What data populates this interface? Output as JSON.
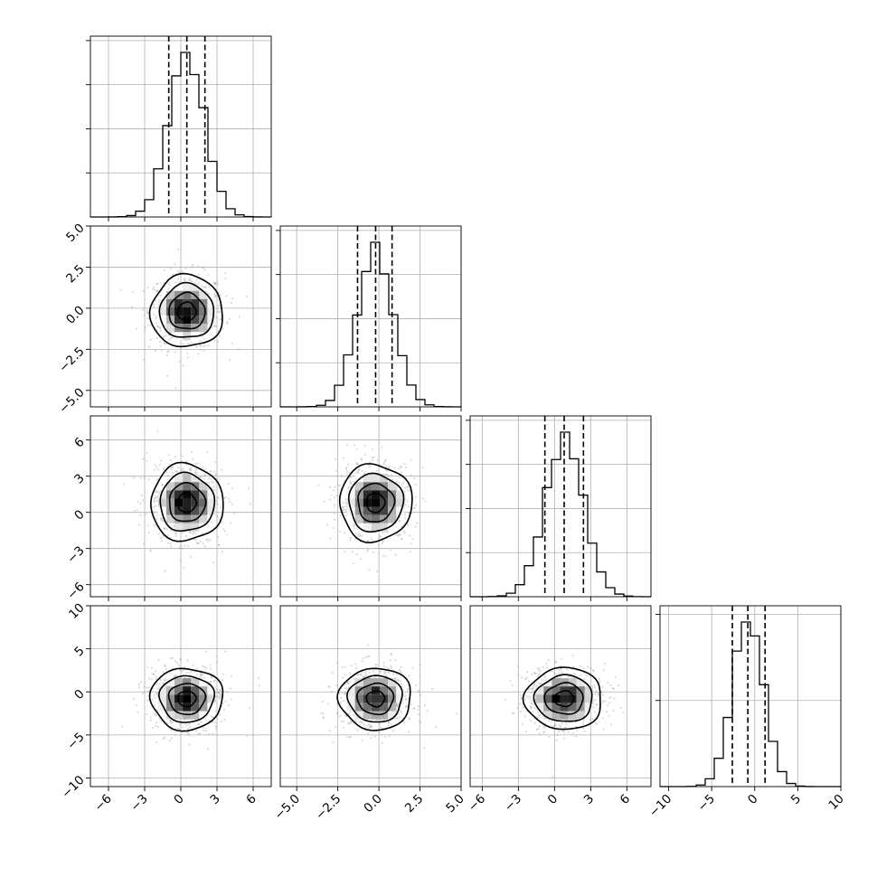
{
  "chart_data": {
    "type": "corner",
    "grid": true,
    "variables": [
      {
        "index": 0,
        "range": [
          -7.5,
          7.5
        ],
        "ticks": [
          -6,
          -3,
          0,
          3,
          6
        ],
        "tick_labels": [
          "−6",
          "−3",
          "0",
          "3",
          "6"
        ],
        "mean": 0.5,
        "sigma": 1.5,
        "quantiles": [
          -1.0,
          0.5,
          2.0
        ]
      },
      {
        "index": 1,
        "range": [
          -6.0,
          5.0
        ],
        "ticks": [
          -5.0,
          -2.5,
          0.0,
          2.5,
          5.0
        ],
        "tick_labels": [
          "−5.0",
          "−2.5",
          "0.0",
          "2.5",
          "5.0"
        ],
        "mean": -0.2,
        "sigma": 1.1,
        "quantiles": [
          -1.3,
          -0.2,
          0.8
        ]
      },
      {
        "index": 2,
        "range": [
          -7.0,
          8.0
        ],
        "ticks": [
          -6,
          -3,
          0,
          3,
          6
        ],
        "tick_labels": [
          "−6",
          "−3",
          "0",
          "3",
          "6"
        ],
        "mean": 0.8,
        "sigma": 1.6,
        "quantiles": [
          -0.8,
          0.8,
          2.4
        ]
      },
      {
        "index": 3,
        "range": [
          -11.0,
          10.0
        ],
        "ticks": [
          -10,
          -5,
          0,
          5,
          10
        ],
        "tick_labels": [
          "−10",
          "−5",
          "0",
          "5",
          "10"
        ],
        "mean": -0.8,
        "sigma": 1.8,
        "quantiles": [
          -2.6,
          -0.8,
          1.2
        ]
      }
    ],
    "histograms": [
      {
        "variable": 0,
        "bins": 20,
        "quantile_style": "dashed",
        "ytick_count": 4
      },
      {
        "variable": 1,
        "bins": 20,
        "quantile_style": "dashed",
        "ytick_count": 4
      },
      {
        "variable": 2,
        "bins": 20,
        "quantile_style": "dashed",
        "ytick_count": 4
      },
      {
        "variable": 3,
        "bins": 20,
        "quantile_style": "dashed",
        "ytick_count": 2
      }
    ],
    "panels_2d": [
      {
        "x": 0,
        "y": 1,
        "contour_levels": [
          "0.5σ",
          "1σ",
          "1.5σ",
          "2σ"
        ]
      },
      {
        "x": 0,
        "y": 2,
        "contour_levels": [
          "0.5σ",
          "1σ",
          "1.5σ",
          "2σ"
        ]
      },
      {
        "x": 1,
        "y": 2,
        "contour_levels": [
          "0.5σ",
          "1σ",
          "1.5σ",
          "2σ"
        ]
      },
      {
        "x": 0,
        "y": 3,
        "contour_levels": [
          "0.5σ",
          "1σ",
          "1.5σ",
          "2σ"
        ]
      },
      {
        "x": 1,
        "y": 3,
        "contour_levels": [
          "0.5σ",
          "1σ",
          "1.5σ",
          "2σ"
        ]
      },
      {
        "x": 2,
        "y": 3,
        "contour_levels": [
          "0.5σ",
          "1σ",
          "1.5σ",
          "2σ"
        ]
      }
    ],
    "colors": {
      "points": "#999999",
      "lines": "#000000",
      "grid": "#b0b0b0"
    }
  }
}
